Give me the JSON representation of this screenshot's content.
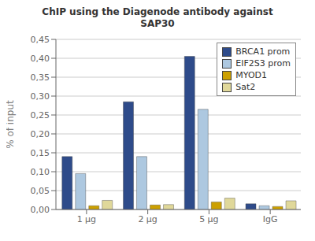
{
  "chart_data": {
    "type": "bar",
    "title": "ChIP using the Diagenode antibody against\nSAP30",
    "ylabel": "% of input",
    "categories": [
      "1 μg",
      "2 μg",
      "5 μg",
      "IgG"
    ],
    "series": [
      {
        "name": "BRCA1 prom",
        "color": "#2E4B8A",
        "values": [
          0.14,
          0.285,
          0.405,
          0.015
        ]
      },
      {
        "name": "EIF2S3 prom",
        "color": "#ADC8E0",
        "values": [
          0.095,
          0.14,
          0.265,
          0.01
        ]
      },
      {
        "name": "MYOD1",
        "color": "#CCA000",
        "values": [
          0.01,
          0.012,
          0.02,
          0.008
        ]
      },
      {
        "name": "Sat2",
        "color": "#E0D89A",
        "values": [
          0.024,
          0.013,
          0.03,
          0.023
        ]
      }
    ],
    "ylim": [
      0.0,
      0.45
    ],
    "yticks": [
      {
        "value": 0.0,
        "label": "0,00"
      },
      {
        "value": 0.05,
        "label": "0,05"
      },
      {
        "value": 0.1,
        "label": "0,10"
      },
      {
        "value": 0.15,
        "label": "0,15"
      },
      {
        "value": 0.2,
        "label": "0,20"
      },
      {
        "value": 0.25,
        "label": "0,25"
      },
      {
        "value": 0.3,
        "label": "0,30"
      },
      {
        "value": 0.35,
        "label": "0,35"
      },
      {
        "value": 0.4,
        "label": "0,40"
      },
      {
        "value": 0.45,
        "label": "0,45"
      }
    ],
    "grid": true,
    "legend": "upper right"
  }
}
